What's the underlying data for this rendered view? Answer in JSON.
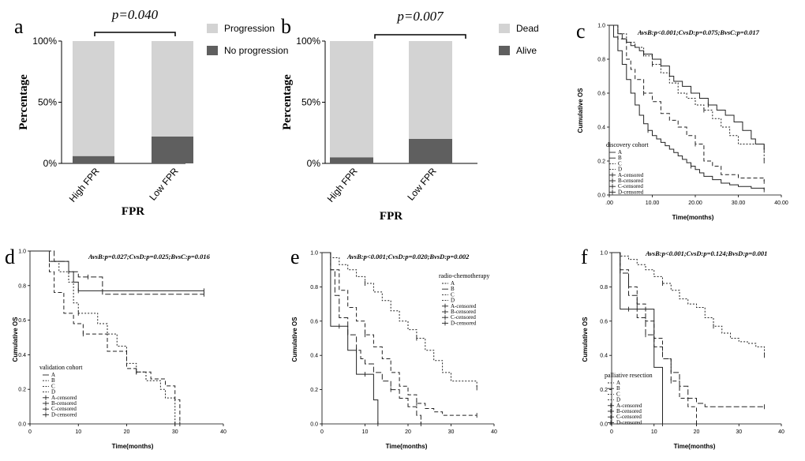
{
  "chart_data": [
    {
      "panel": "a",
      "type": "bar",
      "stacked": true,
      "title": "p=0.040",
      "xlabel": "FPR",
      "ylabel": "Percentage",
      "ylim": [
        0,
        100
      ],
      "yticks": [
        "0%",
        "50%",
        "100%"
      ],
      "categories": [
        "High FPR",
        "Low FPR"
      ],
      "series": [
        {
          "name": "No progression",
          "color": "#5f5f5f",
          "values": [
            6,
            22
          ]
        },
        {
          "name": "Progression",
          "color": "#d3d3d3",
          "values": [
            94,
            78
          ]
        }
      ],
      "legend": [
        "Progression",
        "No progression"
      ]
    },
    {
      "panel": "b",
      "type": "bar",
      "stacked": true,
      "title": "p=0.007",
      "xlabel": "FPR",
      "ylabel": "Percentage",
      "ylim": [
        0,
        100
      ],
      "yticks": [
        "0%",
        "50%",
        "100%"
      ],
      "categories": [
        "High FPR",
        "Low FPR"
      ],
      "series": [
        {
          "name": "Alive",
          "color": "#5f5f5f",
          "values": [
            5,
            20
          ]
        },
        {
          "name": "Dead",
          "color": "#d3d3d3",
          "values": [
            95,
            80
          ]
        }
      ],
      "legend": [
        "Dead",
        "Alive"
      ]
    },
    {
      "panel": "c",
      "type": "line",
      "title": "AvsB:p<0.001;CvsD:p=0.075;BvsC:p=0.017",
      "xlabel": "Time(months)",
      "ylabel": "Cumulative OS",
      "xlim": [
        0,
        40
      ],
      "ylim": [
        0,
        1
      ],
      "xticks": [
        ".00",
        "10.00",
        "20.00",
        "30.00",
        "40.00"
      ],
      "yticks": [
        "0.0",
        "0.2",
        "0.4",
        "0.6",
        "0.8",
        "1.0"
      ],
      "legend_title": "discovery cohort",
      "legend": [
        "A",
        "B",
        "C",
        "D",
        "A-censored",
        "B-censored",
        "C-censored",
        "D-censored"
      ],
      "series": [
        {
          "name": "A",
          "style": "solid",
          "x": [
            0,
            2,
            3,
            4,
            5,
            6,
            7,
            8,
            10,
            12,
            14,
            15,
            17,
            19,
            21,
            23,
            25,
            27,
            29,
            31,
            33,
            34,
            36
          ],
          "y": [
            1,
            0.95,
            0.92,
            0.9,
            0.88,
            0.87,
            0.85,
            0.83,
            0.8,
            0.76,
            0.7,
            0.67,
            0.64,
            0.6,
            0.57,
            0.53,
            0.5,
            0.47,
            0.43,
            0.38,
            0.33,
            0.3,
            0.27
          ]
        },
        {
          "name": "B",
          "style": "solid",
          "x": [
            0,
            1,
            2,
            3,
            4,
            5,
            6,
            7,
            8,
            9,
            10,
            11,
            12,
            13,
            14,
            15,
            16,
            17,
            18,
            19,
            20,
            21,
            22,
            24,
            26,
            28,
            30,
            33,
            36
          ],
          "y": [
            1,
            0.93,
            0.85,
            0.77,
            0.68,
            0.6,
            0.53,
            0.47,
            0.42,
            0.38,
            0.35,
            0.33,
            0.31,
            0.29,
            0.27,
            0.25,
            0.23,
            0.21,
            0.19,
            0.17,
            0.15,
            0.13,
            0.11,
            0.09,
            0.07,
            0.06,
            0.05,
            0.04,
            0.03
          ]
        },
        {
          "name": "C",
          "style": "dotted",
          "x": [
            0,
            2,
            4,
            6,
            8,
            10,
            12,
            14,
            16,
            18,
            20,
            22,
            24,
            26,
            28,
            30,
            36
          ],
          "y": [
            1,
            0.95,
            0.9,
            0.87,
            0.82,
            0.77,
            0.72,
            0.66,
            0.6,
            0.57,
            0.53,
            0.5,
            0.45,
            0.4,
            0.35,
            0.3,
            0.2
          ]
        },
        {
          "name": "D",
          "style": "dashed",
          "x": [
            0,
            2,
            4,
            5,
            6,
            8,
            10,
            12,
            14,
            16,
            18,
            20,
            22,
            24,
            26,
            30,
            36
          ],
          "y": [
            1,
            0.92,
            0.8,
            0.74,
            0.68,
            0.6,
            0.55,
            0.48,
            0.44,
            0.4,
            0.35,
            0.3,
            0.2,
            0.17,
            0.12,
            0.1,
            0.08
          ]
        }
      ]
    },
    {
      "panel": "d",
      "type": "line",
      "title": "AvsB:p=0.027;CvsD:p=0.025;BvsC:p=0.016",
      "xlabel": "Time(months)",
      "ylabel": "Cumulative OS",
      "xlim": [
        0,
        40
      ],
      "ylim": [
        0,
        1
      ],
      "xticks": [
        "0",
        "10",
        "20",
        "30",
        "40"
      ],
      "yticks": [
        "0.0",
        "0.2",
        "0.4",
        "0.6",
        "0.8",
        "1.0"
      ],
      "legend_title": "validation cohort",
      "legend": [
        "A",
        "B",
        "C",
        "D",
        "A-censored",
        "B-censored",
        "C-censored",
        "D-censored"
      ],
      "series": [
        {
          "name": "A",
          "style": "solid",
          "x": [
            0,
            4,
            8,
            9,
            10,
            11,
            36
          ],
          "y": [
            1,
            0.94,
            0.88,
            0.82,
            0.77,
            0.77,
            0.77
          ]
        },
        {
          "name": "B",
          "style": "dotted",
          "x": [
            0,
            4,
            6,
            8,
            9,
            10,
            14,
            16,
            18,
            20,
            22,
            24,
            27,
            28,
            30
          ],
          "y": [
            1,
            0.94,
            0.88,
            0.82,
            0.7,
            0.64,
            0.58,
            0.52,
            0.45,
            0.35,
            0.3,
            0.25,
            0.2,
            0.15,
            0.0
          ]
        },
        {
          "name": "C",
          "style": "dashed",
          "x": [
            0,
            4,
            5,
            7,
            9,
            11,
            14,
            16,
            18,
            20,
            22,
            25,
            28,
            30,
            31
          ],
          "y": [
            1,
            0.88,
            0.76,
            0.64,
            0.58,
            0.52,
            0.52,
            0.42,
            0.42,
            0.32,
            0.3,
            0.26,
            0.22,
            0.14,
            0.0
          ]
        },
        {
          "name": "D",
          "style": "dashed2",
          "x": [
            0,
            5,
            8,
            10,
            12,
            15,
            36
          ],
          "y": [
            1,
            0.94,
            0.88,
            0.85,
            0.85,
            0.75,
            0.75
          ]
        }
      ]
    },
    {
      "panel": "e",
      "type": "line",
      "title": "AvsB:p<0.001;CvsD:p=0.020;BvsD:p=0.002",
      "xlabel": "Time(months)",
      "ylabel": "Cumulative OS",
      "xlim": [
        0,
        40
      ],
      "ylim": [
        0,
        1
      ],
      "xticks": [
        "0",
        "10",
        "20",
        "30",
        "40"
      ],
      "yticks": [
        "0.0",
        "0.2",
        "0.4",
        "0.6",
        "0.8",
        "1.0"
      ],
      "legend_title": "radio-chemotherapy",
      "legend": [
        "A",
        "B",
        "C",
        "D",
        "A-censored",
        "B-censored",
        "C-censored",
        "D-censored"
      ],
      "series": [
        {
          "name": "A",
          "style": "dotted",
          "x": [
            0,
            2,
            4,
            6,
            8,
            10,
            12,
            14,
            16,
            18,
            20,
            22,
            24,
            26,
            28,
            30,
            36
          ],
          "y": [
            1,
            0.97,
            0.93,
            0.9,
            0.86,
            0.82,
            0.77,
            0.72,
            0.66,
            0.6,
            0.55,
            0.5,
            0.43,
            0.37,
            0.3,
            0.25,
            0.21
          ]
        },
        {
          "name": "B",
          "style": "solid",
          "x": [
            0,
            2,
            4,
            6,
            8,
            10,
            12,
            13
          ],
          "y": [
            1,
            0.57,
            0.57,
            0.43,
            0.29,
            0.29,
            0.14,
            0.0
          ]
        },
        {
          "name": "C",
          "style": "dashed",
          "x": [
            0,
            2,
            4,
            6,
            8,
            10,
            12,
            14,
            16,
            18,
            20,
            22,
            24,
            26,
            28,
            30,
            36
          ],
          "y": [
            1,
            0.9,
            0.78,
            0.68,
            0.6,
            0.52,
            0.45,
            0.38,
            0.3,
            0.22,
            0.17,
            0.12,
            0.09,
            0.07,
            0.05,
            0.05,
            0.05
          ]
        },
        {
          "name": "D",
          "style": "dashed2",
          "x": [
            0,
            2,
            3,
            4,
            6,
            8,
            9,
            10,
            12,
            14,
            16,
            18,
            20,
            22,
            23
          ],
          "y": [
            1,
            0.9,
            0.75,
            0.62,
            0.52,
            0.43,
            0.38,
            0.35,
            0.3,
            0.25,
            0.2,
            0.15,
            0.1,
            0.05,
            0.0
          ]
        }
      ]
    },
    {
      "panel": "f",
      "type": "line",
      "title": "AvsB:p<0.001;CvsD:p=0.124;BvsD:p=0.001",
      "xlabel": "Time(months)",
      "ylabel": "Cumulative OS",
      "xlim": [
        0,
        40
      ],
      "ylim": [
        0,
        1
      ],
      "xticks": [
        "0",
        "10",
        "20",
        "30",
        "40"
      ],
      "yticks": [
        "0.0",
        "0.2",
        "0.4",
        "0.6",
        "0.8",
        "1.0"
      ],
      "legend_title": "palliative resection",
      "legend": [
        "A",
        "B",
        "C",
        "D",
        "A-censored",
        "B-censored",
        "C-censored",
        "D-censored"
      ],
      "series": [
        {
          "name": "A",
          "style": "dotted",
          "x": [
            0,
            2,
            4,
            6,
            8,
            10,
            12,
            14,
            16,
            18,
            20,
            22,
            24,
            26,
            28,
            30,
            32,
            34,
            36
          ],
          "y": [
            1,
            0.98,
            0.96,
            0.93,
            0.9,
            0.86,
            0.82,
            0.78,
            0.73,
            0.7,
            0.68,
            0.62,
            0.57,
            0.53,
            0.5,
            0.48,
            0.47,
            0.45,
            0.4
          ]
        },
        {
          "name": "B",
          "style": "solid",
          "x": [
            0,
            2,
            4,
            6,
            8,
            10,
            12
          ],
          "y": [
            1,
            0.67,
            0.67,
            0.67,
            0.67,
            0.33,
            0.0
          ]
        },
        {
          "name": "C",
          "style": "dashed",
          "x": [
            0,
            2,
            4,
            6,
            8,
            10,
            12,
            14,
            16,
            18,
            20
          ],
          "y": [
            1,
            0.9,
            0.8,
            0.7,
            0.6,
            0.5,
            0.38,
            0.25,
            0.15,
            0.1,
            0.0
          ]
        },
        {
          "name": "D",
          "style": "dashed2",
          "x": [
            0,
            2,
            4,
            6,
            8,
            10,
            12,
            14,
            16,
            18,
            20,
            22,
            36
          ],
          "y": [
            1,
            0.88,
            0.75,
            0.62,
            0.52,
            0.45,
            0.38,
            0.3,
            0.22,
            0.15,
            0.12,
            0.1,
            0.1
          ]
        }
      ]
    }
  ]
}
